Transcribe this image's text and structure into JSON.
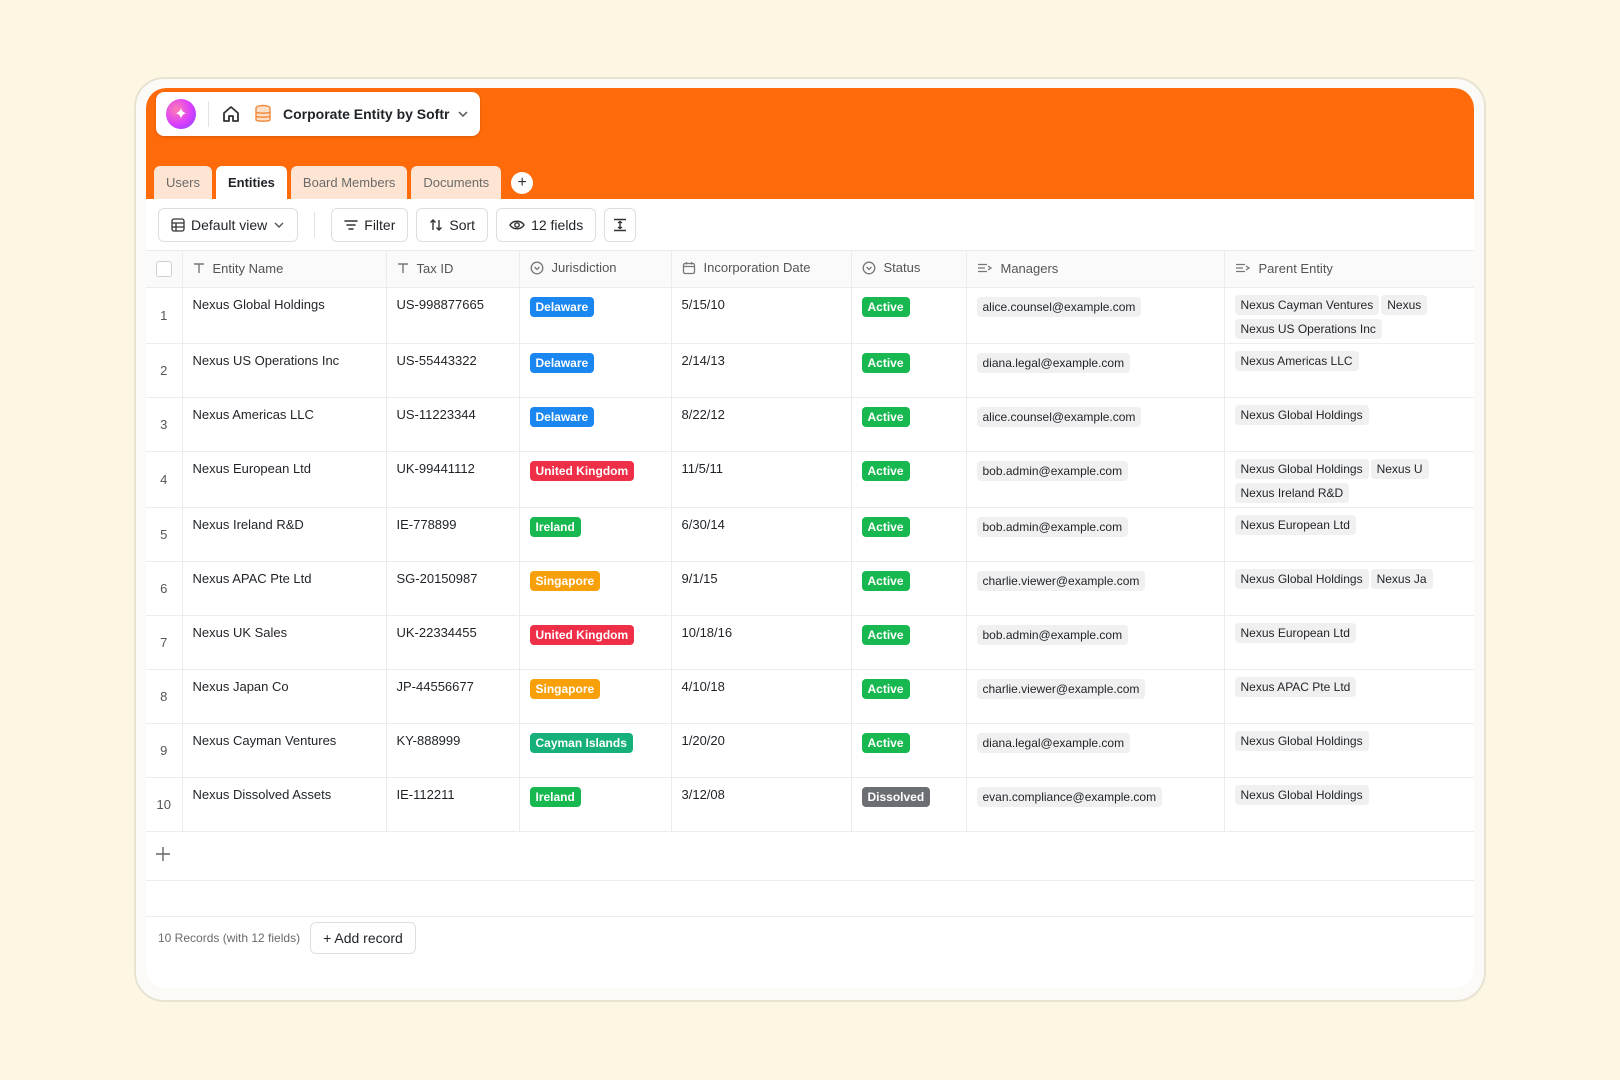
{
  "app": {
    "title": "Corporate Entity by Softr",
    "logo_icon": "sparkle-icon",
    "colors": {
      "header": "#ff6b0a"
    }
  },
  "tabs": [
    {
      "label": "Users",
      "active": false
    },
    {
      "label": "Entities",
      "active": true
    },
    {
      "label": "Board Members",
      "active": false
    },
    {
      "label": "Documents",
      "active": false
    }
  ],
  "toolbar": {
    "view_label": "Default view",
    "filter_label": "Filter",
    "sort_label": "Sort",
    "fields_label": "12 fields"
  },
  "columns": [
    {
      "label": "Entity Name",
      "icon": "text-type-icon"
    },
    {
      "label": "Tax ID",
      "icon": "text-type-icon"
    },
    {
      "label": "Jurisdiction",
      "icon": "select-type-icon"
    },
    {
      "label": "Incorporation Date",
      "icon": "calendar-icon"
    },
    {
      "label": "Status",
      "icon": "select-type-icon"
    },
    {
      "label": "Managers",
      "icon": "link-type-icon"
    },
    {
      "label": "Parent Entity",
      "icon": "link-type-icon"
    }
  ],
  "pill_colors": {
    "Delaware": "#1a86f0",
    "United Kingdom": "#ef2e48",
    "Ireland": "#17b84f",
    "Singapore": "#f7a00a",
    "Cayman Islands": "#16b07a",
    "Active": "#17b84f",
    "Dissolved": "#6b6e73"
  },
  "rows": [
    {
      "num": "1",
      "name": "Nexus Global Holdings",
      "tax_id": "US-998877665",
      "jurisdiction": "Delaware",
      "date": "5/15/10",
      "status": "Active",
      "manager": "alice.counsel@example.com",
      "parents": [
        "Nexus Cayman Ventures",
        "Nexus",
        "Nexus US Operations Inc"
      ]
    },
    {
      "num": "2",
      "name": "Nexus US Operations Inc",
      "tax_id": "US-55443322",
      "jurisdiction": "Delaware",
      "date": "2/14/13",
      "status": "Active",
      "manager": "diana.legal@example.com",
      "parents": [
        "Nexus Americas LLC"
      ]
    },
    {
      "num": "3",
      "name": "Nexus Americas LLC",
      "tax_id": "US-11223344",
      "jurisdiction": "Delaware",
      "date": "8/22/12",
      "status": "Active",
      "manager": "alice.counsel@example.com",
      "parents": [
        "Nexus Global Holdings"
      ]
    },
    {
      "num": "4",
      "name": "Nexus European Ltd",
      "tax_id": "UK-99441112",
      "jurisdiction": "United Kingdom",
      "date": "11/5/11",
      "status": "Active",
      "manager": "bob.admin@example.com",
      "parents": [
        "Nexus Global Holdings",
        "Nexus U",
        "Nexus Ireland R&D"
      ]
    },
    {
      "num": "5",
      "name": "Nexus Ireland R&D",
      "tax_id": "IE-778899",
      "jurisdiction": "Ireland",
      "date": "6/30/14",
      "status": "Active",
      "manager": "bob.admin@example.com",
      "parents": [
        "Nexus European Ltd"
      ]
    },
    {
      "num": "6",
      "name": "Nexus APAC Pte Ltd",
      "tax_id": "SG-20150987",
      "jurisdiction": "Singapore",
      "date": "9/1/15",
      "status": "Active",
      "manager": "charlie.viewer@example.com",
      "parents": [
        "Nexus Global Holdings",
        "Nexus Ja"
      ]
    },
    {
      "num": "7",
      "name": "Nexus UK Sales",
      "tax_id": "UK-22334455",
      "jurisdiction": "United Kingdom",
      "date": "10/18/16",
      "status": "Active",
      "manager": "bob.admin@example.com",
      "parents": [
        "Nexus European Ltd"
      ]
    },
    {
      "num": "8",
      "name": "Nexus Japan Co",
      "tax_id": "JP-44556677",
      "jurisdiction": "Singapore",
      "date": "4/10/18",
      "status": "Active",
      "manager": "charlie.viewer@example.com",
      "parents": [
        "Nexus APAC Pte Ltd"
      ]
    },
    {
      "num": "9",
      "name": "Nexus Cayman Ventures",
      "tax_id": "KY-888999",
      "jurisdiction": "Cayman Islands",
      "date": "1/20/20",
      "status": "Active",
      "manager": "diana.legal@example.com",
      "parents": [
        "Nexus Global Holdings"
      ]
    },
    {
      "num": "10",
      "name": "Nexus Dissolved Assets",
      "tax_id": "IE-112211",
      "jurisdiction": "Ireland",
      "date": "3/12/08",
      "status": "Dissolved",
      "manager": "evan.compliance@example.com",
      "parents": [
        "Nexus Global Holdings"
      ]
    }
  ],
  "footer": {
    "record_count": "10 Records (with 12 fields)",
    "add_record_label": "+ Add record"
  }
}
